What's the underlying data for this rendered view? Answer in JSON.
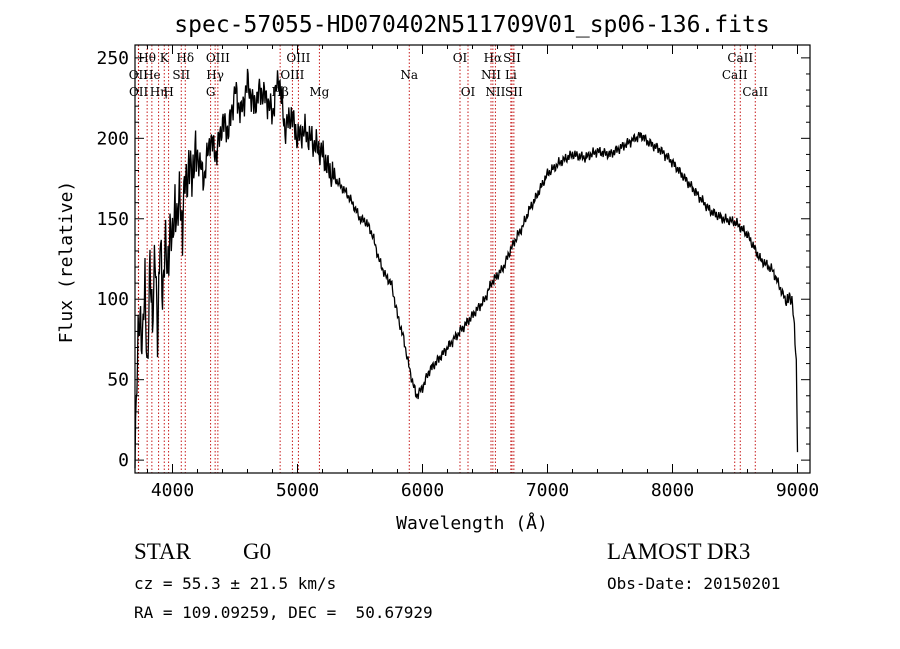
{
  "chart_data": {
    "type": "line",
    "title": "spec-57055-HD070402N511709V01_sp06-136.fits",
    "xlabel": "Wavelength (Å)",
    "ylabel": "Flux (relative)",
    "xlim": [
      3700,
      9100
    ],
    "ylim": [
      -8,
      258
    ],
    "xticks": [
      4000,
      5000,
      6000,
      7000,
      8000,
      9000
    ],
    "yticks": [
      0,
      50,
      100,
      150,
      200,
      250
    ],
    "series": [
      {
        "name": "flux",
        "x": [
          3700,
          3720,
          3740,
          3760,
          3780,
          3800,
          3820,
          3840,
          3860,
          3880,
          3900,
          3920,
          3940,
          3960,
          3980,
          4000,
          4020,
          4040,
          4060,
          4080,
          4100,
          4150,
          4200,
          4250,
          4300,
          4350,
          4400,
          4450,
          4500,
          4550,
          4600,
          4650,
          4700,
          4750,
          4800,
          4850,
          4900,
          4950,
          5000,
          5050,
          5100,
          5150,
          5200,
          5250,
          5300,
          5350,
          5400,
          5450,
          5500,
          5550,
          5600,
          5650,
          5700,
          5750,
          5800,
          5850,
          5900,
          5950,
          6000,
          6050,
          6100,
          6150,
          6200,
          6250,
          6300,
          6350,
          6400,
          6450,
          6500,
          6550,
          6600,
          6650,
          6700,
          6750,
          6800,
          6850,
          6900,
          6950,
          7000,
          7100,
          7200,
          7300,
          7400,
          7500,
          7600,
          7700,
          7750,
          7800,
          7900,
          8000,
          8100,
          8200,
          8300,
          8400,
          8500,
          8600,
          8700,
          8800,
          8900,
          8960,
          8990,
          9000
        ],
        "y": [
          10,
          60,
          95,
          70,
          110,
          55,
          120,
          90,
          125,
          80,
          135,
          100,
          140,
          110,
          150,
          130,
          165,
          145,
          170,
          140,
          175,
          180,
          190,
          175,
          200,
          190,
          210,
          205,
          230,
          215,
          235,
          220,
          230,
          225,
          215,
          240,
          205,
          215,
          200,
          205,
          200,
          195,
          190,
          180,
          175,
          170,
          165,
          158,
          150,
          148,
          140,
          125,
          115,
          110,
          90,
          75,
          55,
          40,
          45,
          55,
          60,
          65,
          70,
          75,
          80,
          85,
          90,
          95,
          100,
          110,
          115,
          120,
          130,
          138,
          145,
          155,
          162,
          170,
          178,
          185,
          190,
          188,
          192,
          190,
          195,
          200,
          202,
          198,
          193,
          185,
          175,
          165,
          155,
          150,
          148,
          140,
          125,
          118,
          100,
          100,
          60,
          5
        ]
      }
    ],
    "line_markers": [
      {
        "label": "Hθ",
        "x": 3797,
        "row": 1
      },
      {
        "label": "OII",
        "x": 3727,
        "row": 2
      },
      {
        "label": "OII",
        "x": 3729,
        "row": 3
      },
      {
        "label": "He",
        "x": 3835,
        "row": 2
      },
      {
        "label": "Hη",
        "x": 3889,
        "row": 3
      },
      {
        "label": "K",
        "x": 3934,
        "row": 1
      },
      {
        "label": "H",
        "x": 3969,
        "row": 3
      },
      {
        "label": "SII",
        "x": 4070,
        "row": 2
      },
      {
        "label": "Hδ",
        "x": 4102,
        "row": 1
      },
      {
        "label": "OIII",
        "x": 4363,
        "row": 1
      },
      {
        "label": "Hγ",
        "x": 4341,
        "row": 2
      },
      {
        "label": "G",
        "x": 4305,
        "row": 3
      },
      {
        "label": "Hβ",
        "x": 4861,
        "row": 3
      },
      {
        "label": "OIII",
        "x": 5007,
        "row": 1
      },
      {
        "label": "OIII",
        "x": 4959,
        "row": 2
      },
      {
        "label": "Mg",
        "x": 5175,
        "row": 3
      },
      {
        "label": "Na",
        "x": 5894,
        "row": 2
      },
      {
        "label": "OI",
        "x": 6300,
        "row": 1
      },
      {
        "label": "OI",
        "x": 6364,
        "row": 3
      },
      {
        "label": "Hα",
        "x": 6563,
        "row": 1
      },
      {
        "label": "SII",
        "x": 6716,
        "row": 1
      },
      {
        "label": "NII",
        "x": 6548,
        "row": 2
      },
      {
        "label": "Li",
        "x": 6707,
        "row": 2
      },
      {
        "label": "NII",
        "x": 6583,
        "row": 3
      },
      {
        "label": "SII",
        "x": 6731,
        "row": 3
      },
      {
        "label": "CaII",
        "x": 8542,
        "row": 1
      },
      {
        "label": "CaII",
        "x": 8498,
        "row": 2
      },
      {
        "label": "CaII",
        "x": 8662,
        "row": 3
      }
    ],
    "colors": {
      "line": "#000000",
      "markers": "#c00000"
    }
  },
  "info": {
    "class_label": "STAR",
    "subclass": "G0",
    "survey": "LAMOST DR3",
    "cz_line": "cz = 55.3 ± 21.5 km/s",
    "obs_date": "Obs-Date: 20150201",
    "coords": "RA = 109.09259, DEC =  50.67929"
  }
}
